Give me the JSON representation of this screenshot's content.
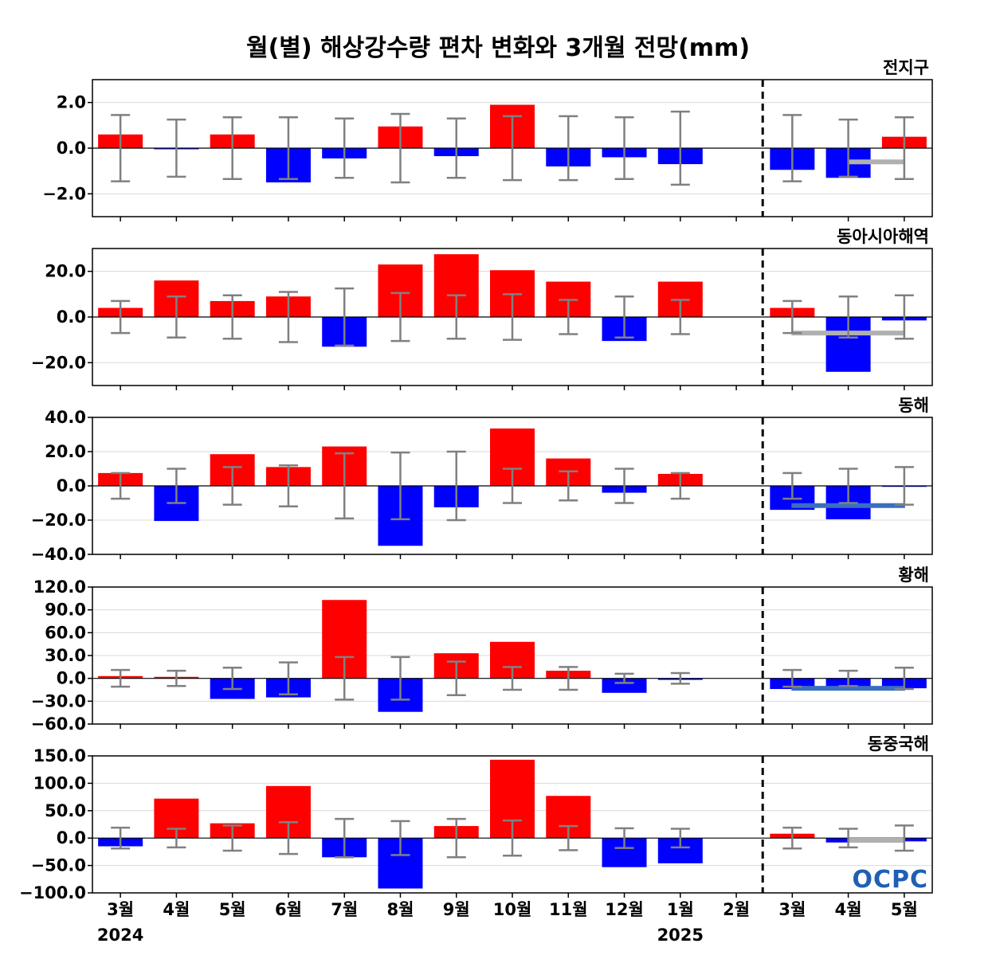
{
  "title": "월(별) 해상강수량 편차 변화와 3개월 전망(mm)",
  "logo": "OCPC",
  "colors": {
    "positive": "#ff0000",
    "negative": "#0000ff",
    "errorbar": "#808080",
    "forecast_light": "#b0b0b0",
    "forecast_dark": "#3a6ebf",
    "grid": "#d9d9d9"
  },
  "chart_data": {
    "type": "bar",
    "x_labels": [
      "3월",
      "4월",
      "5월",
      "6월",
      "7월",
      "8월",
      "9월",
      "10월",
      "11월",
      "12월",
      "1월",
      "2월",
      "3월",
      "4월",
      "5월"
    ],
    "year_labels": [
      {
        "index": 0,
        "label": "2024"
      },
      {
        "index": 10,
        "label": "2025"
      }
    ],
    "forecast_divider_after_index": 11,
    "panels": [
      {
        "name": "전지구",
        "ylim": [
          -3,
          3
        ],
        "yticks": [
          -2,
          0,
          2
        ],
        "ytick_labels": [
          "−2.0",
          "0.0",
          "2.0"
        ],
        "values": [
          0.6,
          -0.05,
          0.6,
          -1.5,
          -0.45,
          0.95,
          -0.35,
          1.9,
          -0.8,
          -0.4,
          -0.7,
          0,
          -0.95,
          -1.3,
          0.5
        ],
        "error": [
          1.45,
          1.25,
          1.35,
          1.35,
          1.3,
          1.5,
          1.3,
          1.4,
          1.4,
          1.35,
          1.6,
          0,
          1.45,
          1.25,
          1.35
        ],
        "forecast_line": {
          "value": -0.6,
          "from_index": 13,
          "to_index": 14,
          "color": "light"
        }
      },
      {
        "name": "동아시아해역",
        "ylim": [
          -30,
          30
        ],
        "yticks": [
          -20,
          0,
          20
        ],
        "ytick_labels": [
          "−20.0",
          "0.0",
          "20.0"
        ],
        "values": [
          4,
          16,
          7,
          9,
          -13,
          23,
          27.5,
          20.5,
          15.5,
          -10.5,
          15.5,
          0,
          4,
          -24,
          -1.5
        ],
        "error": [
          7,
          9,
          9.5,
          11,
          12.5,
          10.5,
          9.5,
          10,
          7.5,
          9,
          7.5,
          0,
          7,
          9,
          9.5
        ],
        "forecast_line": {
          "value": -7,
          "from_index": 12,
          "to_index": 14,
          "color": "light"
        }
      },
      {
        "name": "동해",
        "ylim": [
          -40,
          40
        ],
        "yticks": [
          -40,
          -20,
          0,
          20,
          40
        ],
        "ytick_labels": [
          "−40.0",
          "−20.0",
          "0.0",
          "20.0",
          "40.0"
        ],
        "values": [
          7.5,
          -20.5,
          18.5,
          11,
          23,
          -35,
          -12.5,
          33.5,
          16,
          -4,
          7,
          0,
          -14,
          -19.5,
          -0.5
        ],
        "error": [
          7.5,
          10,
          11,
          12,
          19,
          19.5,
          20,
          10,
          8.5,
          10,
          7.5,
          0,
          7.5,
          10,
          11
        ],
        "forecast_line": {
          "value": -11.5,
          "from_index": 12,
          "to_index": 14,
          "color": "dark"
        }
      },
      {
        "name": "황해",
        "ylim": [
          -60,
          120
        ],
        "yticks": [
          -60,
          -30,
          0,
          30,
          60,
          90,
          120
        ],
        "ytick_labels": [
          "−60.0",
          "−30.0",
          "0.0",
          "30.0",
          "60.0",
          "90.0",
          "120.0"
        ],
        "values": [
          3,
          2,
          -27,
          -25,
          103,
          -44,
          33,
          48,
          10,
          -19,
          -2,
          0,
          -14,
          -12,
          -13
        ],
        "error": [
          11,
          10,
          14,
          21,
          28,
          28,
          22,
          15,
          15,
          6,
          7,
          0,
          11,
          10,
          14
        ],
        "forecast_line": {
          "value": -13,
          "from_index": 12,
          "to_index": 14,
          "color": "dark"
        }
      },
      {
        "name": "동중국해",
        "ylim": [
          -100,
          150
        ],
        "yticks": [
          -100,
          -50,
          0,
          50,
          100,
          150
        ],
        "ytick_labels": [
          "−100.0",
          "−50.0",
          "0.0",
          "50.0",
          "100.0",
          "150.0"
        ],
        "values": [
          -15,
          72,
          27,
          95,
          -35,
          -92,
          22,
          143,
          77,
          -53,
          -46,
          0,
          8,
          -8,
          -6
        ],
        "error": [
          19,
          17,
          23,
          29,
          35,
          31,
          35,
          32,
          22,
          18,
          17,
          0,
          19,
          17,
          23
        ],
        "forecast_line": {
          "value": -4,
          "from_index": 13,
          "to_index": 14,
          "color": "light"
        }
      }
    ]
  }
}
